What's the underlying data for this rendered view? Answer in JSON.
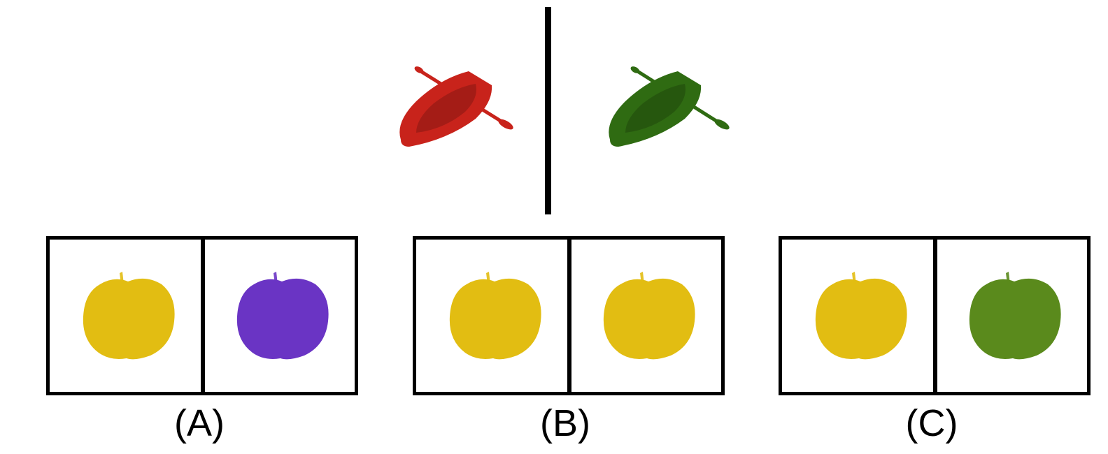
{
  "colors": {
    "background": "#ffffff",
    "outline": "#000000",
    "red": "#c8231b",
    "green_boat": "#2f6b12",
    "yellow": "#e2bd12",
    "purple": "#6a34c4",
    "green_apple": "#5a8a1c"
  },
  "prompt": {
    "left_object": {
      "shape": "rowboat",
      "color_name": "red",
      "icon": "rowboat-icon"
    },
    "right_object": {
      "shape": "rowboat",
      "color_name": "green",
      "icon": "rowboat-icon"
    }
  },
  "options": [
    {
      "label": "(A)",
      "left": {
        "shape": "apple",
        "color_name": "yellow"
      },
      "right": {
        "shape": "apple",
        "color_name": "purple"
      }
    },
    {
      "label": "(B)",
      "left": {
        "shape": "apple",
        "color_name": "yellow"
      },
      "right": {
        "shape": "apple",
        "color_name": "yellow"
      }
    },
    {
      "label": "(C)",
      "left": {
        "shape": "apple",
        "color_name": "yellow"
      },
      "right": {
        "shape": "apple",
        "color_name": "green"
      }
    }
  ]
}
